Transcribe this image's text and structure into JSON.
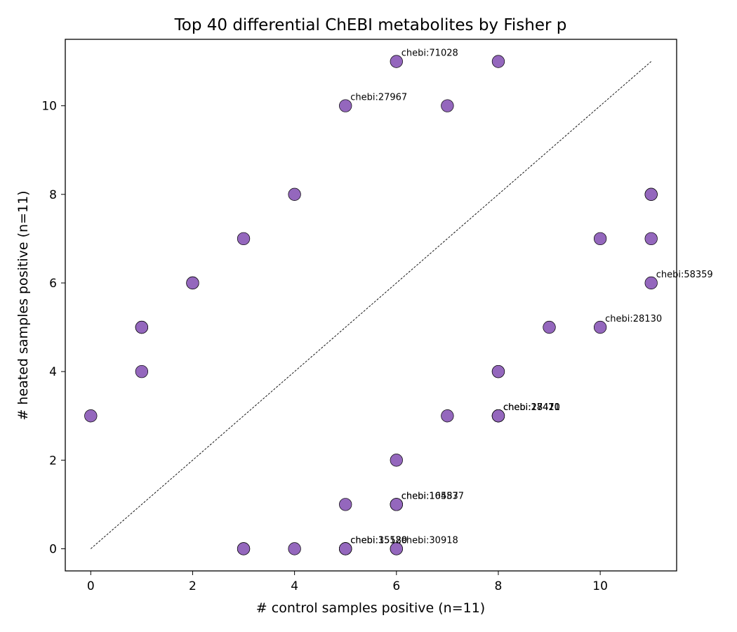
{
  "chart_data": {
    "type": "scatter",
    "title": "Top 40 differential ChEBI metabolites by Fisher p",
    "xlabel": "# control samples positive (n=11)",
    "ylabel": "# heated samples positive (n=11)",
    "xlim": [
      -0.5,
      11.5
    ],
    "ylim": [
      -0.5,
      11.5
    ],
    "xticks": [
      0,
      2,
      4,
      6,
      8,
      10
    ],
    "yticks": [
      0,
      2,
      4,
      6,
      8,
      10
    ],
    "grid": false,
    "point_color": "#9467bd",
    "point_edge_color": "#000000",
    "reference_line": {
      "from": [
        0,
        0
      ],
      "to": [
        11,
        11
      ],
      "style": "dashed"
    },
    "points": [
      {
        "x": 6,
        "y": 11
      },
      {
        "x": 8,
        "y": 11
      },
      {
        "x": 5,
        "y": 10
      },
      {
        "x": 7,
        "y": 10
      },
      {
        "x": 4,
        "y": 8
      },
      {
        "x": 11,
        "y": 8
      },
      {
        "x": 11,
        "y": 8
      },
      {
        "x": 3,
        "y": 7
      },
      {
        "x": 10,
        "y": 7
      },
      {
        "x": 11,
        "y": 7
      },
      {
        "x": 2,
        "y": 6
      },
      {
        "x": 2,
        "y": 6
      },
      {
        "x": 11,
        "y": 6
      },
      {
        "x": 1,
        "y": 5
      },
      {
        "x": 1,
        "y": 5
      },
      {
        "x": 9,
        "y": 5
      },
      {
        "x": 10,
        "y": 5
      },
      {
        "x": 1,
        "y": 4
      },
      {
        "x": 8,
        "y": 4
      },
      {
        "x": 8,
        "y": 4
      },
      {
        "x": 0,
        "y": 3
      },
      {
        "x": 7,
        "y": 3
      },
      {
        "x": 8,
        "y": 3
      },
      {
        "x": 8,
        "y": 3
      },
      {
        "x": 8,
        "y": 3
      },
      {
        "x": 8,
        "y": 3
      },
      {
        "x": 6,
        "y": 2
      },
      {
        "x": 5,
        "y": 1
      },
      {
        "x": 6,
        "y": 1
      },
      {
        "x": 6,
        "y": 1
      },
      {
        "x": 6,
        "y": 1
      },
      {
        "x": 3,
        "y": 0
      },
      {
        "x": 3,
        "y": 0
      },
      {
        "x": 4,
        "y": 0
      },
      {
        "x": 5,
        "y": 0
      },
      {
        "x": 5,
        "y": 0
      },
      {
        "x": 5,
        "y": 0
      },
      {
        "x": 5,
        "y": 0
      },
      {
        "x": 6,
        "y": 0
      },
      {
        "x": 6,
        "y": 0
      }
    ],
    "annotations": [
      {
        "text": "chebi:71028",
        "x": 6,
        "y": 11
      },
      {
        "text": "chebi:27967",
        "x": 5,
        "y": 10
      },
      {
        "text": "chebi:58359",
        "x": 11,
        "y": 6
      },
      {
        "text": "chebi:28130",
        "x": 10,
        "y": 5
      },
      {
        "text": "chebi:18421",
        "x": 8,
        "y": 3
      },
      {
        "text": "chebi:27470",
        "x": 8,
        "y": 3
      },
      {
        "text": "chebi:28410",
        "x": 8,
        "y": 3
      },
      {
        "text": "chebi:16457",
        "x": 6,
        "y": 1
      },
      {
        "text": "chebi:105837",
        "x": 6,
        "y": 1
      },
      {
        "text": "chebi:35120",
        "x": 5,
        "y": 0
      },
      {
        "text": "chebi:15589",
        "x": 5,
        "y": 0
      },
      {
        "text": "chebi:30918",
        "x": 6,
        "y": 0
      }
    ]
  }
}
